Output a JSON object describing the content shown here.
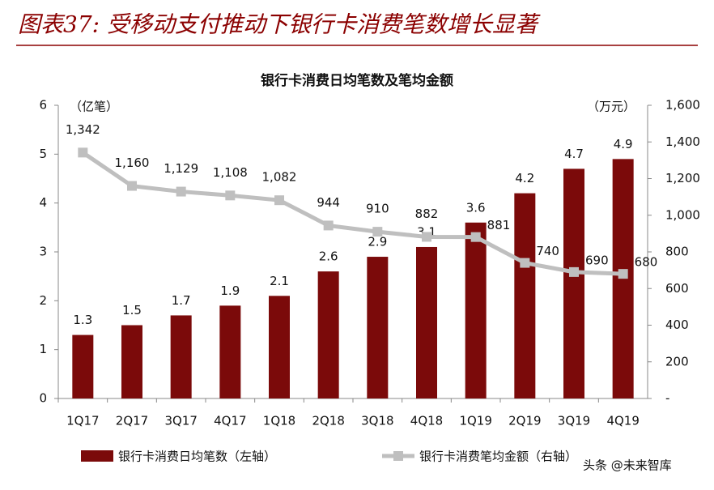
{
  "header": {
    "title": "图表37: 受移动支付推动下银行卡消费笔数增长显著"
  },
  "watermark": "头条 @未来智库",
  "chart_data": {
    "type": "combo",
    "title": "银行卡消费日均笔数及笔均金额",
    "ylabel": "（亿笔）",
    "y2label": "（万元）",
    "categories": [
      "1Q17",
      "2Q17",
      "3Q17",
      "4Q17",
      "1Q18",
      "2Q18",
      "3Q18",
      "4Q18",
      "1Q19",
      "2Q19",
      "3Q19",
      "4Q19"
    ],
    "series": [
      {
        "name": "银行卡消费日均笔数（左轴）",
        "type": "bar",
        "color": "#7b0a0a",
        "values": [
          1.3,
          1.5,
          1.7,
          1.9,
          2.1,
          2.6,
          2.9,
          3.1,
          3.6,
          4.2,
          4.7,
          4.9
        ]
      },
      {
        "name": "银行卡消费笔均金额（右轴）",
        "type": "line",
        "axis": "y2",
        "color": "#bfbfbf",
        "values": [
          1342,
          1160,
          1129,
          1108,
          1082,
          944,
          910,
          882,
          881,
          740,
          690,
          680
        ],
        "value_labels": [
          "1,342",
          "1,160",
          "1,129",
          "1,108",
          "1,082",
          "944",
          "910",
          "882",
          "881",
          "740",
          "690",
          "680"
        ]
      }
    ],
    "ylim": [
      0,
      6
    ],
    "yticks": [
      0,
      1,
      2,
      3,
      4,
      5,
      6
    ],
    "y2lim": [
      0,
      1600
    ],
    "y2ticks": [
      {
        "value": 0,
        "label": "-"
      },
      200,
      400,
      600,
      800,
      {
        "value": 1000,
        "label": "1,000"
      },
      {
        "value": 1200,
        "label": "1,200"
      },
      {
        "value": 1400,
        "label": "1,400"
      },
      {
        "value": 1600,
        "label": "1,600"
      }
    ],
    "grid": false
  }
}
